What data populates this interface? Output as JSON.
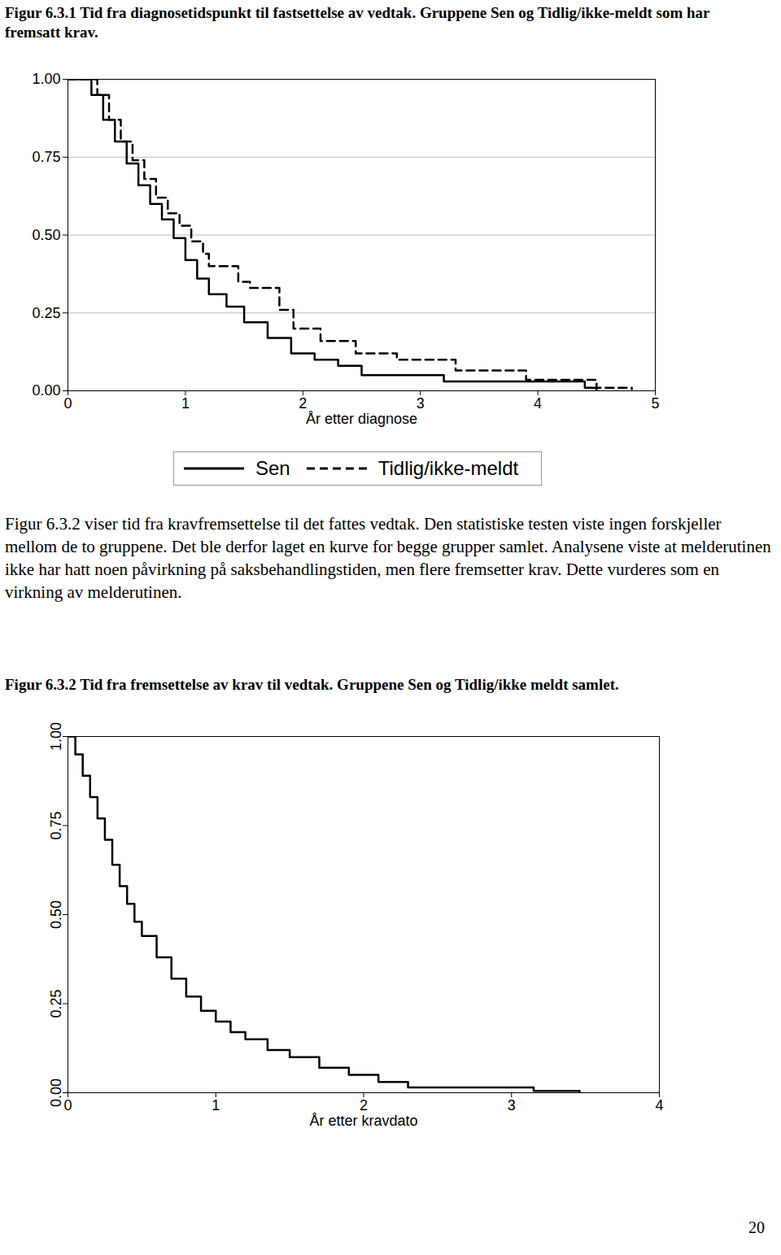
{
  "chart_data": [
    {
      "type": "line",
      "title": "Figur 6.3.1 Tid fra diagnosetidspunkt til fastsettelse av vedtak. Gruppene Sen og Tidlig/ikke-meldt som har fremsatt krav.",
      "x_label": "År etter diagnose",
      "xlim": [
        0,
        5
      ],
      "xticks": [
        0,
        1,
        2,
        3,
        4,
        5
      ],
      "ylim": [
        0,
        1
      ],
      "yticks": [
        {
          "value": 0,
          "label": "0.00"
        },
        {
          "value": 0.25,
          "label": "0.25"
        },
        {
          "value": 0.5,
          "label": "0.50"
        },
        {
          "value": 0.75,
          "label": "0.75"
        },
        {
          "value": 1,
          "label": "1.00"
        }
      ],
      "grid": true,
      "legend": "bottom",
      "series": [
        {
          "name": "Sen",
          "color": "#000000",
          "line_style": "solid",
          "x": [
            0,
            0.1,
            0.2,
            0.3,
            0.4,
            0.5,
            0.6,
            0.7,
            0.8,
            0.9,
            1.0,
            1.1,
            1.2,
            1.35,
            1.5,
            1.7,
            1.9,
            2.1,
            2.3,
            2.5,
            3.2,
            4.4,
            4.5
          ],
          "values": [
            1,
            1,
            0.95,
            0.87,
            0.8,
            0.73,
            0.66,
            0.6,
            0.55,
            0.49,
            0.42,
            0.36,
            0.31,
            0.27,
            0.22,
            0.17,
            0.12,
            0.1,
            0.08,
            0.05,
            0.03,
            0.01,
            0
          ]
        },
        {
          "name": "Tidlig/ikke-meldt",
          "color": "#000000",
          "line_style": "dashed",
          "x": [
            0,
            0.15,
            0.25,
            0.35,
            0.45,
            0.55,
            0.65,
            0.75,
            0.85,
            0.95,
            1.05,
            1.15,
            1.2,
            1.45,
            1.55,
            1.8,
            1.92,
            2.15,
            2.45,
            2.8,
            3.3,
            3.9,
            4.5,
            4.8
          ],
          "values": [
            1,
            1,
            0.95,
            0.87,
            0.8,
            0.74,
            0.68,
            0.62,
            0.57,
            0.53,
            0.48,
            0.44,
            0.4,
            0.35,
            0.33,
            0.26,
            0.2,
            0.16,
            0.12,
            0.1,
            0.065,
            0.035,
            0.01,
            0.005
          ]
        }
      ]
    },
    {
      "type": "line",
      "title": "Figur 6.3.2 Tid fra fremsettelse av krav til vedtak. Gruppene Sen og Tidlig/ikke meldt samlet.",
      "x_label": "År etter kravdato",
      "xlim": [
        0,
        4
      ],
      "xticks": [
        0,
        1,
        2,
        3,
        4
      ],
      "ylim": [
        0,
        1
      ],
      "yticks": [
        {
          "value": 0,
          "label": "0.00"
        },
        {
          "value": 0.25,
          "label": "0.25"
        },
        {
          "value": 0.5,
          "label": "0.50"
        },
        {
          "value": 0.75,
          "label": "0.75"
        },
        {
          "value": 1,
          "label": "1.00"
        }
      ],
      "grid": false,
      "color": "#000000",
      "line_style": "solid",
      "x": [
        0,
        0.02,
        0.05,
        0.1,
        0.15,
        0.2,
        0.25,
        0.3,
        0.35,
        0.4,
        0.45,
        0.5,
        0.6,
        0.7,
        0.8,
        0.9,
        1.0,
        1.1,
        1.2,
        1.35,
        1.5,
        1.7,
        1.9,
        2.1,
        2.3,
        3.15,
        3.46
      ],
      "values": [
        1,
        1,
        0.95,
        0.89,
        0.83,
        0.77,
        0.71,
        0.64,
        0.58,
        0.53,
        0.48,
        0.44,
        0.38,
        0.32,
        0.27,
        0.23,
        0.2,
        0.17,
        0.15,
        0.12,
        0.1,
        0.07,
        0.05,
        0.03,
        0.015,
        0.005,
        0
      ]
    }
  ],
  "document": {
    "paragraph": "Figur 6.3.2 viser tid fra kravfremsettelse til det fattes vedtak. Den statistiske testen viste ingen forskjeller mellom de to gruppene. Det ble derfor laget en kurve for begge grupper samlet. Analysene viste at melderutinen ikke har hatt noen påvirkning på saksbehandlingstiden, men flere fremsetter krav. Dette vurderes som en virkning av melderutinen.",
    "page_number": "20"
  }
}
